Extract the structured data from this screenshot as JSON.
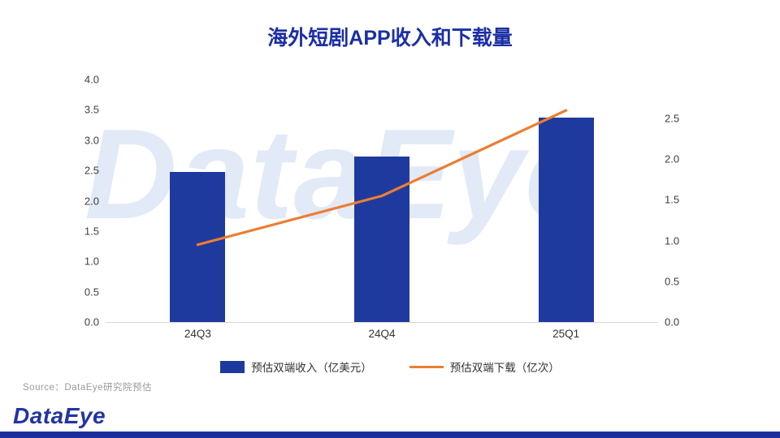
{
  "title": "海外短剧APP收入和下载量",
  "watermark": "DataEye",
  "source": "Source：DataEye研究院预估",
  "logo": "DataEye",
  "colors": {
    "bar": "#1f3a9e",
    "line": "#ed7d31",
    "title": "#1b2fa6",
    "watermark": "#e2e9f7",
    "logo": "#2334a3",
    "footer_bar": "#1b2d9b",
    "axis_text": "#3f3f3f"
  },
  "chart_data": {
    "type": "bar",
    "subtype": "combo-bar-line-dual-axis",
    "title": "海外短剧APP收入和下载量",
    "categories": [
      "24Q3",
      "24Q4",
      "25Q1"
    ],
    "series": [
      {
        "name": "预估双端收入（亿美元）",
        "type": "bar",
        "axis": "left",
        "values": [
          2.48,
          2.73,
          3.37
        ]
      },
      {
        "name": "预估双端下载（亿次）",
        "type": "line",
        "axis": "right",
        "values": [
          0.95,
          1.55,
          2.6
        ]
      }
    ],
    "left_axis": {
      "min": 0,
      "max": 4,
      "step": 0.5,
      "ticks": [
        "4.0",
        "3.5",
        "3.0",
        "2.5",
        "2.0",
        "1.5",
        "1.0",
        "0.5",
        "0.0"
      ]
    },
    "right_axis": {
      "min": 0,
      "step": 0.5,
      "tick_max": 2.5,
      "scale_max": 2.98,
      "ticks": [
        "2.5",
        "2.0",
        "1.5",
        "1.0",
        "0.5",
        "0.0"
      ]
    },
    "grid": false,
    "legend_position": "bottom"
  }
}
